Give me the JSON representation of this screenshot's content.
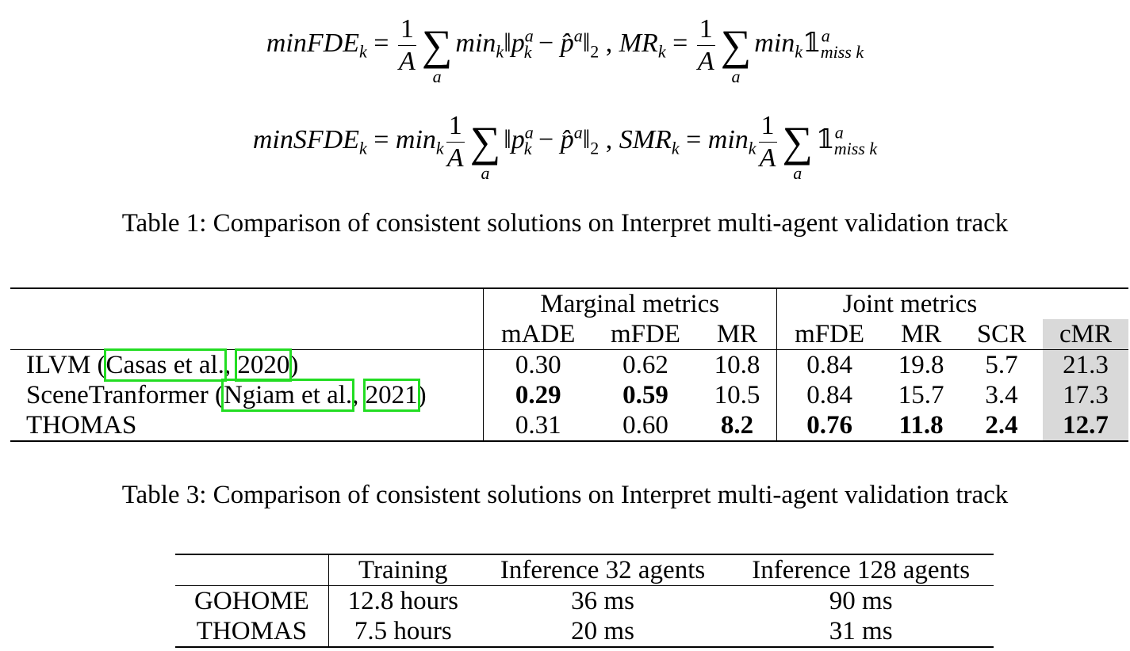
{
  "equations": {
    "eq1_a": "minFDE",
    "eq1_b": "MR",
    "eq2_a": "minSFDE",
    "eq2_b": "SMR"
  },
  "table1": {
    "caption": "Table 1: Comparison of consistent solutions on Interpret multi-agent validation track",
    "group_headers": [
      "Marginal metrics",
      "Joint metrics"
    ],
    "columns": [
      "mADE",
      "mFDE",
      "MR",
      "mFDE",
      "MR",
      "SCR",
      "cMR"
    ],
    "rows": [
      {
        "name_pre": "ILVM (",
        "cite1": "Casas et al.",
        "sep": ", ",
        "cite2": "2020",
        "name_post": ")",
        "values": [
          "0.30",
          "0.62",
          "10.8",
          "0.84",
          "19.8",
          "5.7",
          "21.3"
        ]
      },
      {
        "name_pre": "SceneTranformer (",
        "cite1": "Ngiam et al.",
        "sep": ", ",
        "cite2": "2021",
        "name_post": ")",
        "values": [
          "0.29",
          "0.59",
          "10.5",
          "0.84",
          "15.7",
          "3.4",
          "17.3"
        ]
      },
      {
        "name_pre": "THOMAS",
        "cite1": "",
        "sep": "",
        "cite2": "",
        "name_post": "",
        "values": [
          "0.31",
          "0.60",
          "8.2",
          "0.76",
          "11.8",
          "2.4",
          "12.7"
        ]
      }
    ]
  },
  "table3": {
    "caption": "Table 3: Comparison of consistent solutions on Interpret multi-agent validation track",
    "columns": [
      "Training",
      "Inference 32 agents",
      "Inference 128 agents"
    ],
    "rows": [
      {
        "name": "GOHOME",
        "values": [
          "12.8 hours",
          "36 ms",
          "90 ms"
        ]
      },
      {
        "name": "THOMAS",
        "values": [
          "7.5 hours",
          "20 ms",
          "31 ms"
        ]
      }
    ]
  },
  "colors": {
    "citation_box": "#22dd22",
    "shaded_column": "#d9d9d9"
  }
}
